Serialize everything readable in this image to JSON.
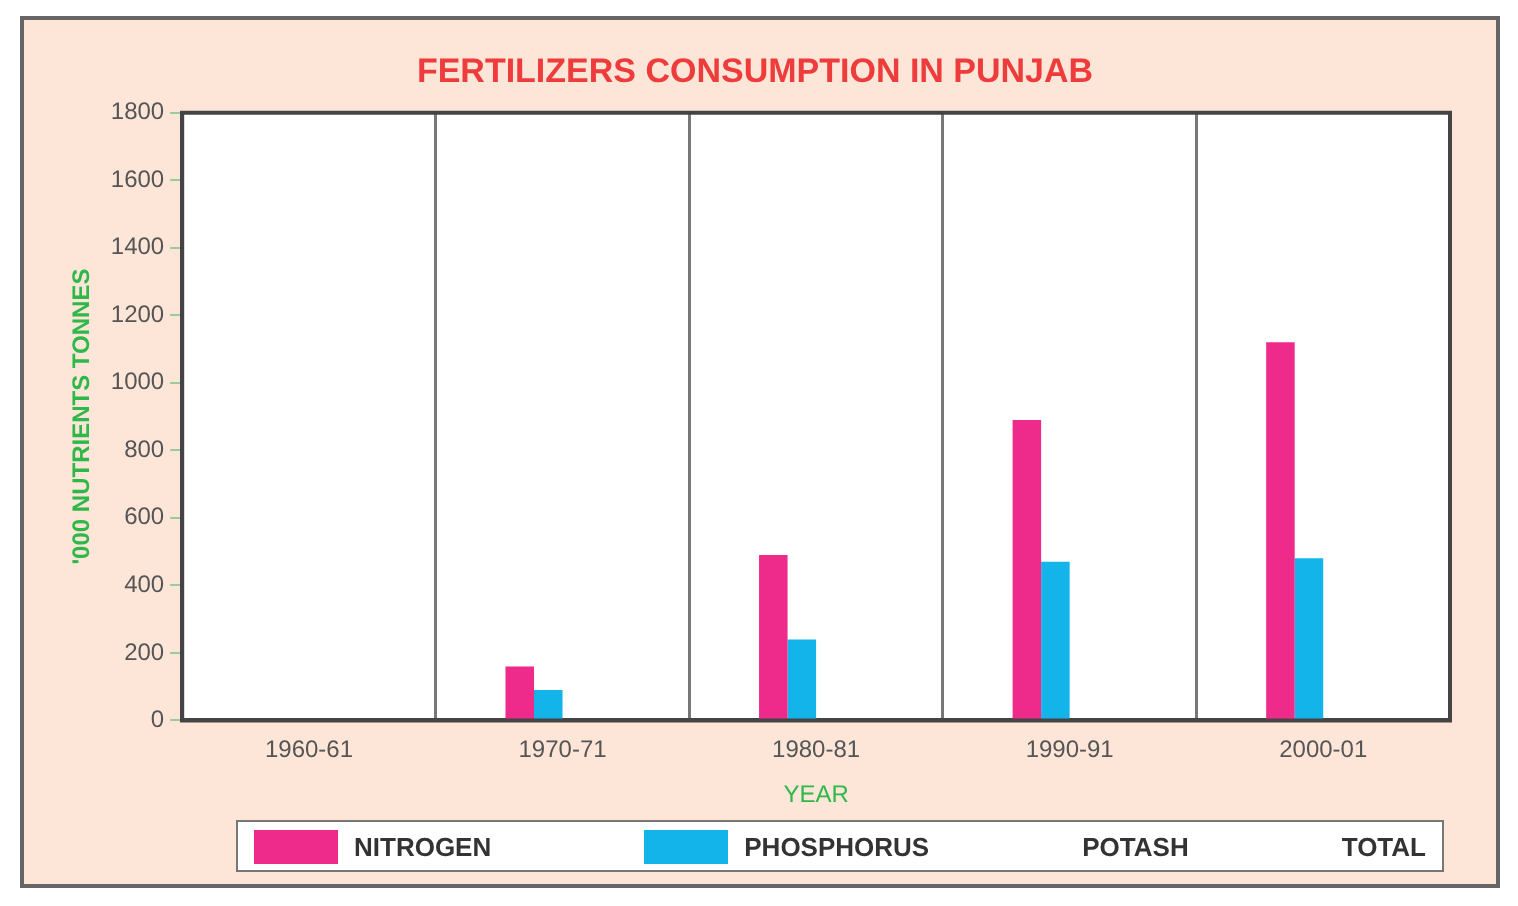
{
  "chart_data": {
    "type": "bar",
    "title": "FERTILIZERS CONSUMPTION IN PUNJAB",
    "xlabel": "YEAR",
    "ylabel": "'000 NUTRIENTS TONNES",
    "categories": [
      "1960-61",
      "1970-71",
      "1980-81",
      "1990-91",
      "2000-01"
    ],
    "series": [
      {
        "name": "NITROGEN",
        "color": "#ee2a8a",
        "values": [
          null,
          160,
          490,
          890,
          1120
        ]
      },
      {
        "name": "PHOSPHORUS",
        "color": "#12b4ea",
        "values": [
          null,
          90,
          240,
          470,
          480
        ]
      },
      {
        "name": "POTASH",
        "values": [
          null,
          null,
          null,
          null,
          null
        ]
      },
      {
        "name": "TOTAL",
        "values": [
          null,
          null,
          null,
          null,
          null
        ]
      }
    ],
    "ylim": [
      0,
      1800
    ],
    "yticks": [
      0,
      200,
      400,
      600,
      800,
      1000,
      1200,
      1400,
      1600,
      1800
    ],
    "grid": "x",
    "legend": "bottom"
  }
}
